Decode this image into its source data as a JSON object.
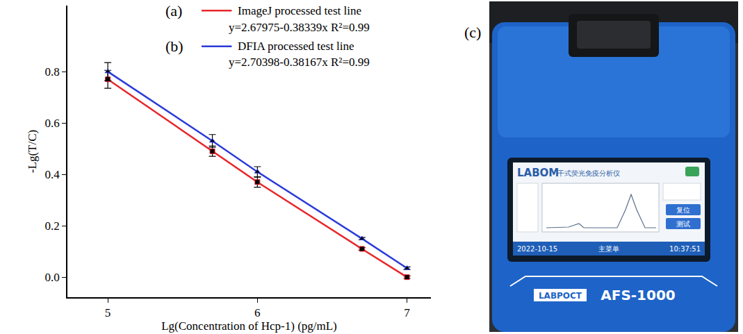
{
  "chart_data": {
    "type": "line",
    "x_title": "Lg(Concentration of Hcp-1) (pg/mL)",
    "y_title": "-Lg(T/C)",
    "x": [
      5,
      5.69897,
      6,
      6.69897,
      7
    ],
    "xlim": [
      4.73,
      7.16
    ],
    "xticks": [
      5,
      6,
      7
    ],
    "ylim": [
      -0.078,
      1.057
    ],
    "yticks": [
      {
        "value": 0,
        "label": "0.0"
      },
      {
        "value": 0.2,
        "label": "0.2"
      },
      {
        "value": 0.4,
        "label": "0.4"
      },
      {
        "value": 0.6,
        "label": "0.6"
      },
      {
        "value": 0.8,
        "label": "0.8"
      }
    ],
    "grid": false,
    "legend": "upper right",
    "series": [
      {
        "name": "ImageJ processed test line",
        "label": "(a)",
        "equation": "y=2.67975-0.38339x R²=0.99",
        "color": "#e8262a",
        "marker": "square",
        "values": [
          0.77,
          0.49,
          0.37,
          0.11,
          0.0
        ],
        "error": [
          0.035,
          0.02,
          0.02,
          0.005,
          0.005
        ]
      },
      {
        "name": "DFIA processed test line",
        "label": "(b)",
        "equation": "y=2.70398-0.38167x R²=0.99",
        "color": "#2b3bd9",
        "marker": "triangle-up",
        "values": [
          0.8,
          0.53,
          0.41,
          0.15,
          0.035
        ],
        "error": [
          0.035,
          0.025,
          0.02,
          0.005,
          0.005
        ]
      }
    ]
  },
  "photo": {
    "label": "(c)",
    "screen_title": "LABOM",
    "screen_subtitle": "干式荧光免疫分析仪",
    "date": "2022-10-15",
    "menu": "主菜单",
    "time": "10:37:51",
    "buttons": [
      "复位",
      "测试"
    ],
    "brand": "LABPOCT",
    "model": "AFS-1000"
  }
}
